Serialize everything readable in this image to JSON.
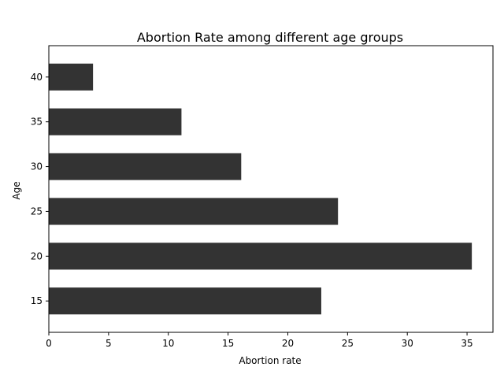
{
  "chart_data": {
    "type": "bar",
    "orientation": "horizontal",
    "title": "Abortion Rate among different age groups",
    "xlabel": "Abortion rate",
    "ylabel": "Age",
    "categories": [
      "15",
      "20",
      "25",
      "30",
      "35",
      "40"
    ],
    "values": [
      22.8,
      35.4,
      24.2,
      16.1,
      11.1,
      3.7
    ],
    "xlim": [
      0,
      37.17
    ],
    "xticks": [
      0,
      5,
      10,
      15,
      20,
      25,
      30,
      35
    ],
    "bar_color": "#333333",
    "grid": false,
    "legend": "none"
  }
}
